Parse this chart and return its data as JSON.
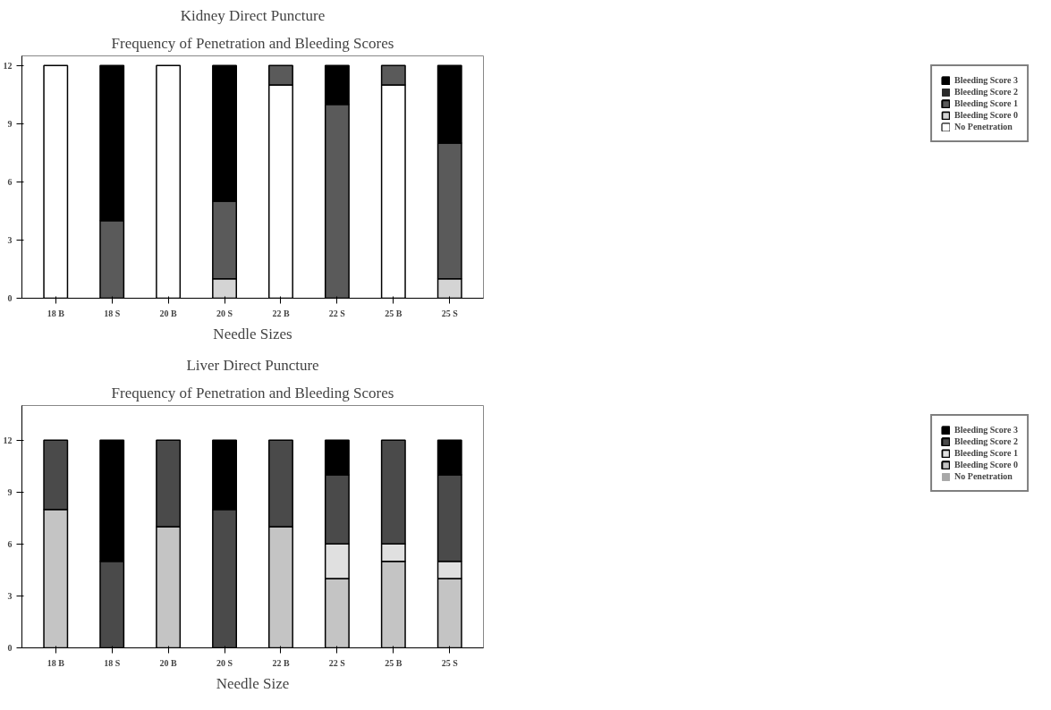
{
  "chart_data": [
    {
      "type": "bar",
      "title": "Kidney Direct Puncture",
      "subtitle": "Frequency of Penetration and Bleeding Scores",
      "xlabel": "Needle Sizes",
      "stacked": true,
      "categories": [
        "18 B",
        "18 S",
        "20 B",
        "20 S",
        "22 B",
        "22 S",
        "25 B",
        "25 S"
      ],
      "ylim": [
        0,
        12.5
      ],
      "yticks": [
        0,
        3,
        6,
        9,
        12
      ],
      "grid": false,
      "legend": "right",
      "series": [
        {
          "name": "No Penetration",
          "color": "#ffffff",
          "values": [
            12,
            0,
            12,
            0,
            11,
            0,
            11,
            0
          ]
        },
        {
          "name": "Bleeding Score 0",
          "color": "#d4d4d4",
          "values": [
            0,
            0,
            0,
            1,
            0,
            0,
            0,
            1
          ]
        },
        {
          "name": "Bleeding Score 1",
          "color": "#5a5a5a",
          "values": [
            0,
            4,
            0,
            4,
            1,
            10,
            1,
            7
          ]
        },
        {
          "name": "Bleeding Score 2",
          "color": "#2a2a2a",
          "values": [
            0,
            0,
            0,
            0,
            0,
            0,
            0,
            0
          ]
        },
        {
          "name": "Bleeding Score 3",
          "color": "#000000",
          "values": [
            0,
            8,
            0,
            7,
            0,
            2,
            0,
            4
          ]
        }
      ]
    },
    {
      "type": "bar",
      "title": "Liver Direct Puncture",
      "subtitle": "Frequency of Penetration and Bleeding Scores",
      "xlabel": "Needle Size",
      "stacked": true,
      "categories": [
        "18 B",
        "18 S",
        "20 B",
        "20 S",
        "22 B",
        "22 S",
        "25 B",
        "25 S"
      ],
      "ylim": [
        0,
        14
      ],
      "yticks": [
        0,
        3,
        6,
        9,
        12
      ],
      "grid": false,
      "legend": "right",
      "series": [
        {
          "name": "No Penetration",
          "color": "#a8a8a8",
          "values": [
            0,
            0,
            0,
            0,
            0,
            0,
            0,
            0
          ]
        },
        {
          "name": "Bleeding Score 0",
          "color": "#c4c4c4",
          "values": [
            8,
            0,
            7,
            0,
            7,
            4,
            5,
            4
          ]
        },
        {
          "name": "Bleeding Score 1",
          "color": "#e0e0e0",
          "values": [
            0,
            0,
            0,
            0,
            0,
            2,
            1,
            1
          ]
        },
        {
          "name": "Bleeding Score 2",
          "color": "#4a4a4a",
          "values": [
            4,
            5,
            5,
            8,
            5,
            4,
            6,
            5
          ]
        },
        {
          "name": "Bleeding Score 3",
          "color": "#000000",
          "values": [
            0,
            7,
            0,
            4,
            0,
            2,
            0,
            2
          ]
        }
      ]
    }
  ]
}
